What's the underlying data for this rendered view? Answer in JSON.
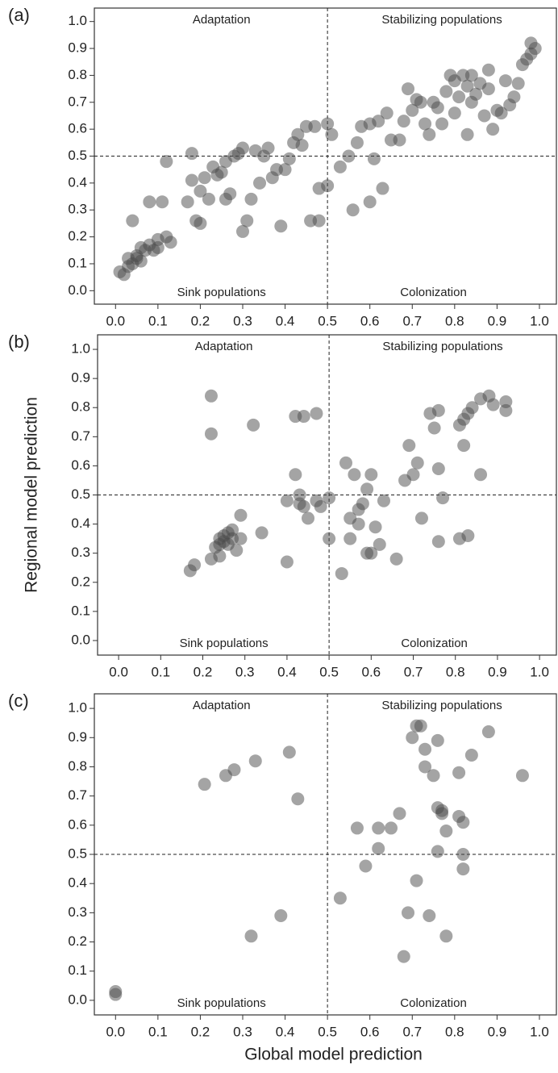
{
  "chart_data": [
    {
      "type": "scatter",
      "panel_label": "(a)",
      "annotations": {
        "top_left": "Adaptation",
        "top_right": "Stabilizing populations",
        "bottom_left": "Sink populations",
        "bottom_right": "Colonization"
      },
      "color": "#4a4a4a",
      "hline": 0.5,
      "vline": 0.5,
      "xlim": [
        -0.05,
        1.04
      ],
      "ylim": [
        -0.05,
        1.05
      ],
      "xticks": [
        {
          "value": 0,
          "label": "0.0"
        },
        0.1,
        0.2,
        0.3,
        0.4,
        0.5,
        0.6,
        0.7,
        0.8,
        0.9,
        {
          "value": 1,
          "label": "1.0"
        }
      ],
      "yticks": [
        {
          "value": 0,
          "label": "0.0"
        },
        0.1,
        0.2,
        0.3,
        0.4,
        0.5,
        0.6,
        0.7,
        0.8,
        0.9,
        {
          "value": 1,
          "label": "1.0"
        }
      ],
      "x": [
        0.01,
        0.02,
        0.03,
        0.03,
        0.04,
        0.05,
        0.05,
        0.06,
        0.06,
        0.07,
        0.08,
        0.09,
        0.1,
        0.1,
        0.12,
        0.13,
        0.04,
        0.08,
        0.11,
        0.12,
        0.17,
        0.18,
        0.18,
        0.19,
        0.2,
        0.2,
        0.21,
        0.22,
        0.23,
        0.24,
        0.25,
        0.26,
        0.26,
        0.27,
        0.28,
        0.29,
        0.3,
        0.3,
        0.31,
        0.32,
        0.33,
        0.34,
        0.35,
        0.36,
        0.37,
        0.38,
        0.39,
        0.4,
        0.41,
        0.42,
        0.43,
        0.44,
        0.45,
        0.46,
        0.47,
        0.48,
        0.48,
        0.5,
        0.5,
        0.51,
        0.53,
        0.55,
        0.56,
        0.57,
        0.58,
        0.6,
        0.6,
        0.61,
        0.62,
        0.63,
        0.64,
        0.65,
        0.67,
        0.68,
        0.69,
        0.7,
        0.71,
        0.73,
        0.74,
        0.75,
        0.76,
        0.77,
        0.78,
        0.79,
        0.8,
        0.8,
        0.81,
        0.82,
        0.83,
        0.83,
        0.84,
        0.85,
        0.86,
        0.87,
        0.88,
        0.89,
        0.9,
        0.91,
        0.92,
        0.93,
        0.94,
        0.95,
        0.96,
        0.97,
        0.98,
        0.98,
        0.99,
        0.88,
        0.84,
        0.72
      ],
      "y": [
        0.07,
        0.06,
        0.09,
        0.12,
        0.1,
        0.12,
        0.13,
        0.11,
        0.16,
        0.15,
        0.17,
        0.15,
        0.16,
        0.19,
        0.2,
        0.18,
        0.26,
        0.33,
        0.33,
        0.48,
        0.33,
        0.41,
        0.51,
        0.26,
        0.25,
        0.37,
        0.42,
        0.34,
        0.46,
        0.43,
        0.44,
        0.48,
        0.34,
        0.36,
        0.5,
        0.51,
        0.22,
        0.53,
        0.26,
        0.34,
        0.52,
        0.4,
        0.5,
        0.53,
        0.42,
        0.45,
        0.24,
        0.45,
        0.49,
        0.55,
        0.58,
        0.54,
        0.61,
        0.26,
        0.61,
        0.38,
        0.26,
        0.39,
        0.62,
        0.58,
        0.46,
        0.5,
        0.3,
        0.55,
        0.61,
        0.33,
        0.62,
        0.49,
        0.63,
        0.38,
        0.66,
        0.56,
        0.56,
        0.63,
        0.75,
        0.67,
        0.71,
        0.62,
        0.58,
        0.7,
        0.68,
        0.62,
        0.74,
        0.8,
        0.78,
        0.66,
        0.72,
        0.8,
        0.76,
        0.58,
        0.7,
        0.73,
        0.77,
        0.65,
        0.75,
        0.6,
        0.67,
        0.66,
        0.78,
        0.69,
        0.72,
        0.77,
        0.84,
        0.86,
        0.92,
        0.88,
        0.9,
        0.82,
        0.8,
        0.7
      ]
    },
    {
      "type": "scatter",
      "panel_label": "(b)",
      "ylabel": "Regional model prediction",
      "annotations": {
        "top_left": "Adaptation",
        "top_right": "Stabilizing populations",
        "bottom_left": "Sink populations",
        "bottom_right": "Colonization"
      },
      "color": "#4a4a4a",
      "hline": 0.5,
      "vline": 0.5,
      "xlim": [
        -0.05,
        1.04
      ],
      "ylim": [
        -0.05,
        1.05
      ],
      "xticks": [
        {
          "value": 0,
          "label": "0.0"
        },
        0.1,
        0.2,
        0.3,
        0.4,
        0.5,
        0.6,
        0.7,
        0.8,
        0.9,
        {
          "value": 1,
          "label": "1.0"
        }
      ],
      "yticks": [
        {
          "value": 0,
          "label": "0.0"
        },
        0.1,
        0.2,
        0.3,
        0.4,
        0.5,
        0.6,
        0.7,
        0.8,
        0.9,
        {
          "value": 1,
          "label": "1.0"
        }
      ],
      "x": [
        0.17,
        0.18,
        0.22,
        0.22,
        0.22,
        0.23,
        0.24,
        0.24,
        0.25,
        0.25,
        0.26,
        0.26,
        0.27,
        0.27,
        0.28,
        0.29,
        0.29,
        0.24,
        0.32,
        0.34,
        0.4,
        0.4,
        0.42,
        0.42,
        0.43,
        0.43,
        0.44,
        0.44,
        0.45,
        0.47,
        0.47,
        0.48,
        0.5,
        0.5,
        0.53,
        0.54,
        0.55,
        0.55,
        0.56,
        0.57,
        0.57,
        0.58,
        0.59,
        0.59,
        0.6,
        0.6,
        0.61,
        0.62,
        0.63,
        0.66,
        0.68,
        0.69,
        0.7,
        0.71,
        0.72,
        0.74,
        0.75,
        0.76,
        0.76,
        0.76,
        0.77,
        0.81,
        0.81,
        0.82,
        0.82,
        0.83,
        0.83,
        0.84,
        0.86,
        0.86,
        0.88,
        0.89,
        0.92,
        0.92
      ],
      "y": [
        0.24,
        0.26,
        0.84,
        0.71,
        0.28,
        0.32,
        0.33,
        0.35,
        0.36,
        0.34,
        0.37,
        0.33,
        0.38,
        0.35,
        0.31,
        0.35,
        0.43,
        0.29,
        0.74,
        0.37,
        0.27,
        0.48,
        0.57,
        0.77,
        0.47,
        0.5,
        0.77,
        0.46,
        0.42,
        0.78,
        0.48,
        0.46,
        0.49,
        0.35,
        0.23,
        0.61,
        0.35,
        0.42,
        0.57,
        0.45,
        0.4,
        0.47,
        0.52,
        0.3,
        0.57,
        0.3,
        0.39,
        0.33,
        0.48,
        0.28,
        0.55,
        0.67,
        0.57,
        0.61,
        0.42,
        0.78,
        0.73,
        0.79,
        0.59,
        0.34,
        0.49,
        0.35,
        0.74,
        0.67,
        0.76,
        0.78,
        0.36,
        0.8,
        0.83,
        0.57,
        0.84,
        0.81,
        0.82,
        0.79
      ]
    },
    {
      "type": "scatter",
      "panel_label": "(c)",
      "xlabel": "Global model prediction",
      "annotations": {
        "top_left": "Adaptation",
        "top_right": "Stabilizing populations",
        "bottom_left": "Sink populations",
        "bottom_right": "Colonization"
      },
      "color": "#4a4a4a",
      "hline": 0.5,
      "vline": 0.5,
      "xlim": [
        -0.05,
        1.04
      ],
      "ylim": [
        -0.05,
        1.05
      ],
      "xticks": [
        {
          "value": 0,
          "label": "0.0"
        },
        0.1,
        0.2,
        0.3,
        0.4,
        0.5,
        0.6,
        0.7,
        0.8,
        0.9,
        {
          "value": 1,
          "label": "1.0"
        }
      ],
      "yticks": [
        {
          "value": 0,
          "label": "0.0"
        },
        0.1,
        0.2,
        0.3,
        0.4,
        0.5,
        0.6,
        0.7,
        0.8,
        0.9,
        {
          "value": 1,
          "label": "1.0"
        }
      ],
      "x": [
        0.0,
        0.0,
        0.21,
        0.26,
        0.28,
        0.32,
        0.33,
        0.39,
        0.41,
        0.43,
        0.53,
        0.57,
        0.59,
        0.62,
        0.62,
        0.65,
        0.67,
        0.68,
        0.69,
        0.7,
        0.71,
        0.71,
        0.72,
        0.73,
        0.73,
        0.74,
        0.75,
        0.76,
        0.76,
        0.76,
        0.77,
        0.77,
        0.78,
        0.78,
        0.81,
        0.81,
        0.82,
        0.82,
        0.82,
        0.84,
        0.88,
        0.96
      ],
      "y": [
        0.03,
        0.02,
        0.74,
        0.77,
        0.79,
        0.22,
        0.82,
        0.29,
        0.85,
        0.69,
        0.35,
        0.59,
        0.46,
        0.52,
        0.59,
        0.59,
        0.64,
        0.15,
        0.3,
        0.9,
        0.94,
        0.41,
        0.94,
        0.86,
        0.8,
        0.29,
        0.77,
        0.89,
        0.66,
        0.51,
        0.65,
        0.64,
        0.58,
        0.22,
        0.78,
        0.63,
        0.5,
        0.45,
        0.61,
        0.84,
        0.92,
        0.77
      ]
    }
  ]
}
